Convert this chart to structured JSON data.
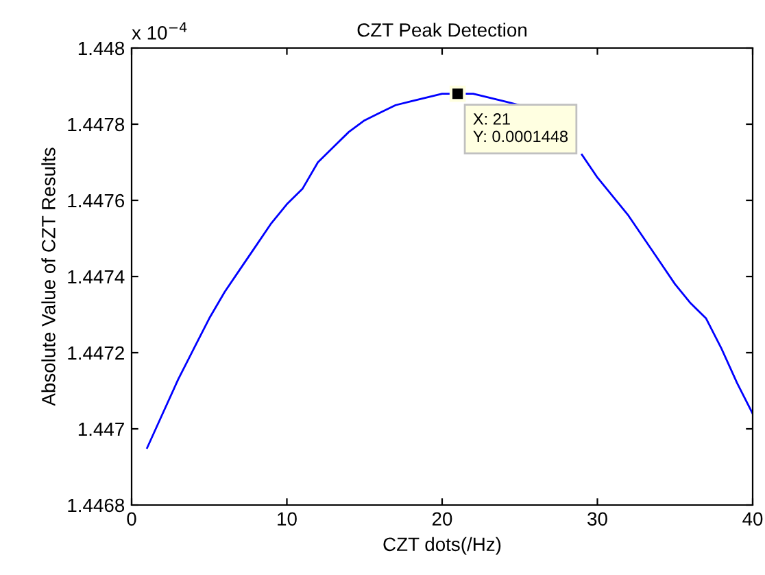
{
  "chart_data": {
    "type": "line",
    "title": "CZT Peak Detection",
    "xlabel": "CZT dots(/Hz)",
    "ylabel": "Absolute Value of CZT Results",
    "x": [
      1,
      2,
      3,
      4,
      5,
      6,
      7,
      8,
      9,
      10,
      11,
      12,
      13,
      14,
      15,
      16,
      17,
      18,
      19,
      20,
      21,
      22,
      23,
      24,
      25,
      26,
      27,
      28,
      29,
      30,
      31,
      32,
      33,
      34,
      35,
      36,
      37,
      38,
      39,
      40
    ],
    "series": [
      {
        "color": "#0000ff",
        "values": [
          1.44695,
          1.44704,
          1.44713,
          1.44721,
          1.44729,
          1.44736,
          1.44742,
          1.44748,
          1.44754,
          1.44759,
          1.44763,
          1.4477,
          1.44774,
          1.44778,
          1.44781,
          1.44783,
          1.44785,
          1.44786,
          1.44787,
          1.44788,
          1.44788,
          1.44788,
          1.44787,
          1.44786,
          1.44785,
          null,
          null,
          null,
          1.44772,
          1.44766,
          1.44761,
          1.44756,
          1.4475,
          1.44744,
          1.44738,
          1.44733,
          1.44729,
          1.44721,
          1.44712,
          1.44704
        ]
      }
    ],
    "xlim": [
      0,
      40
    ],
    "xticks": [
      0,
      10,
      20,
      30,
      40
    ],
    "ylim": [
      1.4468,
      1.448
    ],
    "yticks": [
      1.4468,
      1.447,
      1.4472,
      1.4474,
      1.4476,
      1.4478,
      1.448
    ],
    "annotations": [
      "x 10$^{−4}$",
      {
        "text": "X: 21\nY: 0.0001448",
        "x": 21,
        "y": 1.44788
      }
    ],
    "marker": "none",
    "line_style": "solid",
    "grid": false,
    "legend": false
  }
}
